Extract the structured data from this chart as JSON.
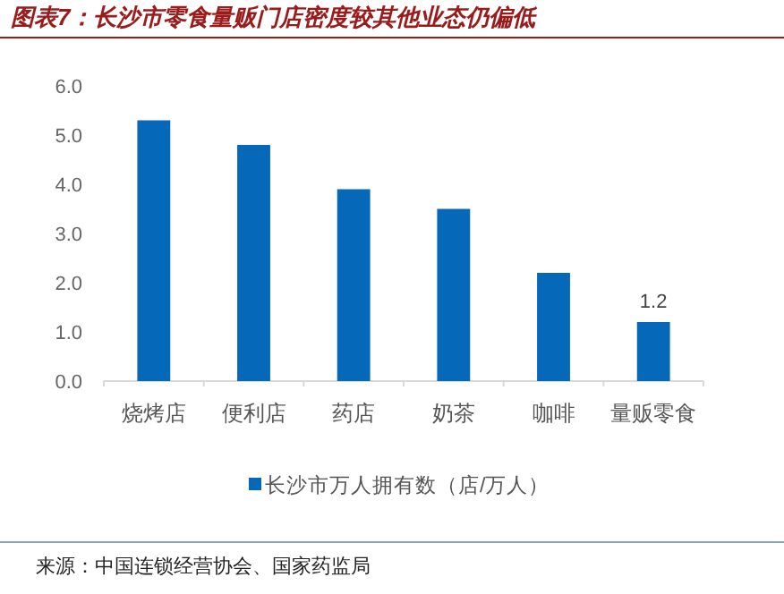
{
  "chart_data": {
    "type": "bar",
    "title": "图表7：长沙市零食量贩门店密度较其他业态仍偏低",
    "categories": [
      "烧烤店",
      "便利店",
      "药店",
      "奶茶",
      "咖啡",
      "量贩零食"
    ],
    "series": [
      {
        "name": "长沙市万人拥有数（店/万人）",
        "color": "#0568b8",
        "values": [
          5.3,
          4.8,
          3.9,
          3.5,
          2.2,
          1.2
        ],
        "value_labels": [
          null,
          null,
          null,
          null,
          null,
          "1.2"
        ]
      }
    ],
    "ylim": [
      0,
      6
    ],
    "yticks": [
      {
        "value": 0,
        "label": "0.0"
      },
      {
        "value": 1,
        "label": "1.0"
      },
      {
        "value": 2,
        "label": "2.0"
      },
      {
        "value": 3,
        "label": "3.0"
      },
      {
        "value": 4,
        "label": "4.0"
      },
      {
        "value": 5,
        "label": "5.0"
      },
      {
        "value": 6,
        "label": "6.0"
      }
    ],
    "grid": false,
    "legend": "bottom",
    "annotations": [
      "来源：中国连锁经营协会、国家药监局"
    ]
  }
}
